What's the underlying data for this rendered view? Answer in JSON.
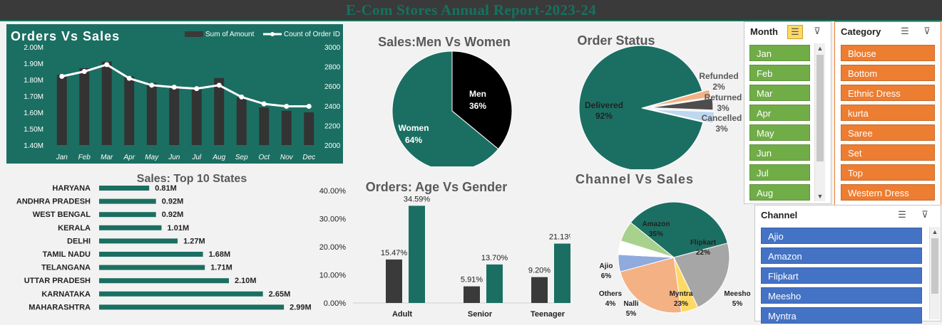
{
  "report_title": "E-Com Stores Annual Report-2023-24",
  "orders_vs_sales": {
    "chart_data": {
      "type": "bar",
      "title": "Orders Vs Sales",
      "categories": [
        "Jan",
        "Feb",
        "Mar",
        "Apr",
        "May",
        "Jun",
        "Jul",
        "Aug",
        "Sep",
        "Oct",
        "Nov",
        "Dec"
      ],
      "series": [
        {
          "name": "Sum of Amount",
          "axis": "left",
          "values": [
            1.83,
            1.87,
            1.91,
            1.82,
            1.78,
            1.76,
            1.75,
            1.81,
            1.69,
            1.63,
            1.61,
            1.6
          ]
        },
        {
          "name": "Count of Order ID",
          "axis": "right",
          "values": [
            2700,
            2750,
            2820,
            2680,
            2610,
            2590,
            2575,
            2610,
            2490,
            2420,
            2395,
            2395
          ]
        }
      ],
      "y_left_ticks": [
        "2.00M",
        "1.90M",
        "1.80M",
        "1.70M",
        "1.60M",
        "1.50M",
        "1.40M"
      ],
      "y_right_ticks": [
        "3000",
        "2800",
        "2600",
        "2400",
        "2200",
        "2000"
      ],
      "ylim_left": [
        1.4,
        2.0
      ],
      "ylim_right": [
        2000,
        3000
      ]
    }
  },
  "sales_men_women": {
    "chart_data": {
      "type": "pie",
      "title": "Sales:Men Vs Women",
      "labels": [
        "Men",
        "Women"
      ],
      "values": [
        36,
        64
      ],
      "value_labels": [
        "36%",
        "64%"
      ],
      "colors": [
        "#000000",
        "#1b6f62"
      ]
    }
  },
  "order_status": {
    "chart_data": {
      "type": "pie",
      "title": "Order Status",
      "labels": [
        "Delivered",
        "Refunded",
        "Returned",
        "Cancelled"
      ],
      "values": [
        92,
        2,
        3,
        3
      ],
      "value_labels": [
        "92%",
        "2%",
        "3%",
        "3%"
      ],
      "colors": [
        "#1b6f62",
        "#f4b183",
        "#4d4d4d",
        "#bdd7ee"
      ]
    }
  },
  "top_states": {
    "chart_data": {
      "type": "bar",
      "title": "Sales: Top 10 States",
      "categories": [
        "HARYANA",
        "ANDHRA PRADESH",
        "WEST BENGAL",
        "KERALA",
        "DELHI",
        "TAMIL NADU",
        "TELANGANA",
        "UTTAR PRADESH",
        "KARNATAKA",
        "MAHARASHTRA"
      ],
      "values": [
        0.81,
        0.92,
        0.92,
        1.01,
        1.27,
        1.68,
        1.71,
        2.1,
        2.65,
        2.99
      ],
      "value_labels": [
        "0.81M",
        "0.92M",
        "0.92M",
        "1.01M",
        "1.27M",
        "1.68M",
        "1.71M",
        "2.10M",
        "2.65M",
        "2.99M"
      ]
    }
  },
  "age_gender": {
    "chart_data": {
      "type": "bar",
      "title": "Orders: Age Vs Gender",
      "categories": [
        "Adult",
        "Senior",
        "Teenager"
      ],
      "series": [
        {
          "values": [
            15.47,
            5.91,
            9.2
          ],
          "labels": [
            "15.47%",
            "5.91%",
            "9.20%"
          ],
          "color": "#3a3a3a"
        },
        {
          "values": [
            34.59,
            13.7,
            21.13
          ],
          "labels": [
            "34.59%",
            "13.70%",
            "21.13%"
          ],
          "color": "#1b6f62"
        }
      ],
      "y_ticks": [
        "40.00%",
        "30.00%",
        "20.00%",
        "10.00%",
        "0.00%"
      ],
      "ylim": [
        0,
        40
      ]
    }
  },
  "channel_sales": {
    "chart_data": {
      "type": "pie",
      "title": "Channel Vs Sales",
      "labels": [
        "Amazon",
        "Flipkart",
        "Meesho",
        "Myntra",
        "Nalli",
        "Others",
        "Ajio"
      ],
      "values": [
        35,
        22,
        5,
        23,
        5,
        4,
        6
      ],
      "value_labels": [
        "35%",
        "22%",
        "5%",
        "23%",
        "5%",
        "4%",
        "6%"
      ],
      "colors": [
        "#1b6f62",
        "#a6a6a6",
        "#ffd966",
        "#f4b183",
        "#8faadc",
        "#ffffff",
        "#a9d18e"
      ]
    }
  },
  "month_slicer": {
    "title": "Month",
    "items": [
      "Jan",
      "Feb",
      "Mar",
      "Apr",
      "May",
      "Jun",
      "Jul",
      "Aug"
    ],
    "color": "#70ad47"
  },
  "category_slicer": {
    "title": "Category",
    "items": [
      "Blouse",
      "Bottom",
      "Ethnic Dress",
      "kurta",
      "Saree",
      "Set",
      "Top",
      "Western Dress"
    ],
    "color": "#ed7d31"
  },
  "channel_slicer": {
    "title": "Channel",
    "items": [
      "Ajio",
      "Amazon",
      "Flipkart",
      "Meesho",
      "Myntra"
    ],
    "color": "#4472c4"
  }
}
